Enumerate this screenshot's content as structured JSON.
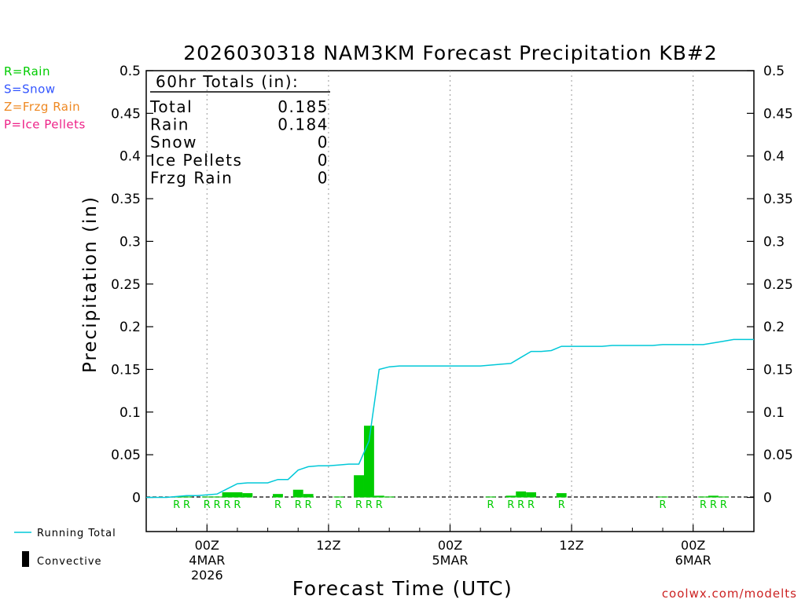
{
  "title": "2026030318 NAM3KM Forecast Precipitation KB#2",
  "xlabel": "Forecast Time (UTC)",
  "ylabel": "Precipitation (in)",
  "credit": "coolwx.com/modelts",
  "colors": {
    "rain": "#00cc00",
    "snow": "#3355ff",
    "frzg": "#ee8822",
    "ice": "#ee2288",
    "running_total": "#00c8d8",
    "convective": "#000000",
    "frame": "#000000",
    "grid": "#aaaaaa"
  },
  "legend_ptype": [
    {
      "text": "R=Rain",
      "color": "#00cc00"
    },
    {
      "text": "S=Snow",
      "color": "#3355ff"
    },
    {
      "text": "Z=Frzg Rain",
      "color": "#ee8822"
    },
    {
      "text": "P=Ice Pellets",
      "color": "#ee2288"
    }
  ],
  "legend_series": {
    "running_total": "Running Total",
    "convective": "Convective"
  },
  "totals": {
    "header": "60hr Totals (in):",
    "rows": [
      {
        "label": "Total",
        "value": "0.185"
      },
      {
        "label": "Rain",
        "value": "0.184"
      },
      {
        "label": "Snow",
        "value": "0"
      },
      {
        "label": "Ice Pellets",
        "value": "0"
      },
      {
        "label": "Frzg Rain",
        "value": "0"
      }
    ]
  },
  "x_ticks": [
    {
      "hour": 6,
      "lines": [
        "00Z",
        "4MAR",
        "2026"
      ]
    },
    {
      "hour": 18,
      "lines": [
        "12Z"
      ]
    },
    {
      "hour": 30,
      "lines": [
        "00Z",
        "5MAR"
      ]
    },
    {
      "hour": 42,
      "lines": [
        "12Z"
      ]
    },
    {
      "hour": 54,
      "lines": [
        "00Z",
        "6MAR"
      ]
    }
  ],
  "y_ticks": [
    "0",
    "0.05",
    "0.1",
    "0.15",
    "0.2",
    "0.25",
    "0.3",
    "0.35",
    "0.4",
    "0.45",
    "0.5"
  ],
  "chart_data": {
    "type": "bar",
    "title": "2026030318 NAM3KM Forecast Precipitation KB#2",
    "xlabel": "Forecast Time (UTC)",
    "ylabel": "Precipitation (in)",
    "x_unit": "forecast hour (00Z 4MAR 2026 = hour 6)",
    "xlim": [
      0,
      60
    ],
    "ylim": [
      -0.04,
      0.5
    ],
    "grid": "vertical dotted at 00Z/12Z",
    "series": [
      {
        "name": "Rain",
        "type": "bar",
        "x": [
          3,
          4,
          6,
          7,
          8,
          9,
          10,
          13,
          15,
          16,
          19,
          21,
          22,
          23,
          24,
          34,
          36,
          37,
          38,
          41,
          51,
          55,
          56,
          57
        ],
        "values": [
          0.001,
          0.001,
          0.001,
          0.001,
          0.006,
          0.006,
          0.005,
          0.004,
          0.009,
          0.004,
          0.001,
          0.026,
          0.084,
          0.002,
          0.001,
          0.001,
          0.002,
          0.007,
          0.006,
          0.005,
          0.001,
          0.001,
          0.002,
          0.001
        ]
      },
      {
        "name": "Running Total",
        "type": "line",
        "x": [
          0,
          1,
          2,
          3,
          4,
          5,
          6,
          7,
          8,
          9,
          10,
          11,
          12,
          13,
          14,
          15,
          16,
          17,
          18,
          19,
          20,
          21,
          22,
          23,
          24,
          25,
          26,
          27,
          28,
          29,
          30,
          31,
          32,
          33,
          34,
          35,
          36,
          37,
          38,
          39,
          40,
          41,
          42,
          43,
          44,
          45,
          46,
          47,
          48,
          49,
          50,
          51,
          52,
          53,
          54,
          55,
          56,
          57,
          58,
          59,
          60
        ],
        "values": [
          0.0,
          0.0,
          0.0,
          0.001,
          0.002,
          0.002,
          0.003,
          0.004,
          0.01,
          0.016,
          0.017,
          0.017,
          0.017,
          0.021,
          0.021,
          0.032,
          0.036,
          0.037,
          0.037,
          0.038,
          0.039,
          0.039,
          0.066,
          0.15,
          0.153,
          0.154,
          0.154,
          0.154,
          0.154,
          0.154,
          0.154,
          0.154,
          0.154,
          0.154,
          0.155,
          0.156,
          0.157,
          0.164,
          0.171,
          0.171,
          0.172,
          0.177,
          0.177,
          0.177,
          0.177,
          0.177,
          0.178,
          0.178,
          0.178,
          0.178,
          0.178,
          0.179,
          0.179,
          0.179,
          0.179,
          0.179,
          0.181,
          0.183,
          0.185,
          0.185,
          0.185
        ]
      }
    ],
    "ptype_labels": [
      {
        "x": 3,
        "label": "R"
      },
      {
        "x": 4,
        "label": "R"
      },
      {
        "x": 6,
        "label": "R"
      },
      {
        "x": 7,
        "label": "R"
      },
      {
        "x": 8,
        "label": "R"
      },
      {
        "x": 9,
        "label": "R"
      },
      {
        "x": 13,
        "label": "R"
      },
      {
        "x": 15,
        "label": "R"
      },
      {
        "x": 16,
        "label": "R"
      },
      {
        "x": 19,
        "label": "R"
      },
      {
        "x": 21,
        "label": "R"
      },
      {
        "x": 22,
        "label": "R"
      },
      {
        "x": 23,
        "label": "R"
      },
      {
        "x": 34,
        "label": "R"
      },
      {
        "x": 36,
        "label": "R"
      },
      {
        "x": 37,
        "label": "R"
      },
      {
        "x": 38,
        "label": "R"
      },
      {
        "x": 41,
        "label": "R"
      },
      {
        "x": 51,
        "label": "R"
      },
      {
        "x": 55,
        "label": "R"
      },
      {
        "x": 56,
        "label": "R"
      },
      {
        "x": 57,
        "label": "R"
      }
    ]
  }
}
